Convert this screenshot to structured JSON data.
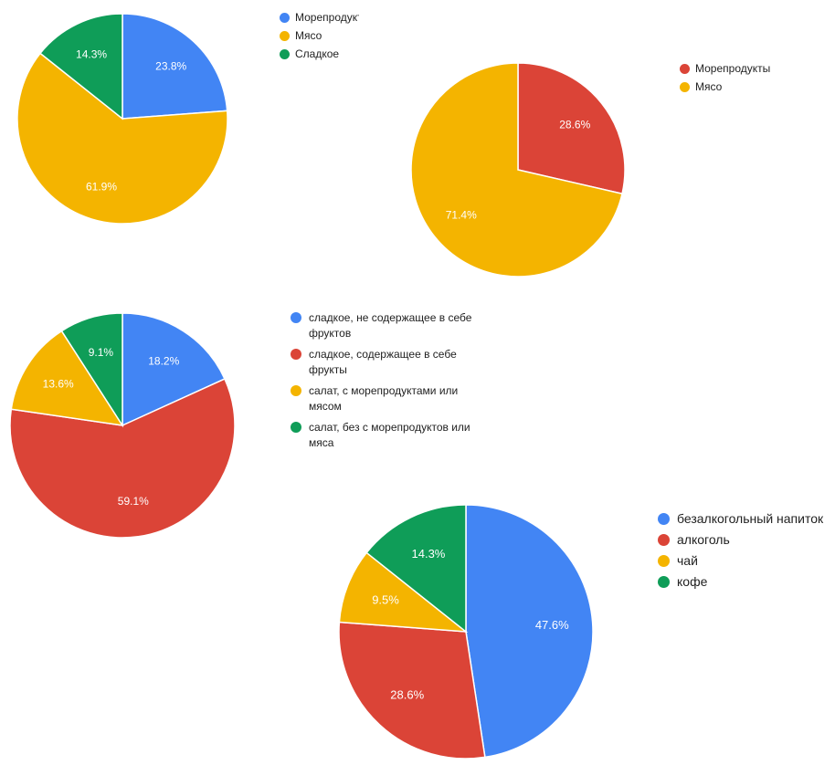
{
  "chart_data": [
    {
      "type": "pie",
      "categories": [
        "Морепродукты",
        "Мясо",
        "Сладкое"
      ],
      "values": [
        23.8,
        61.9,
        14.3
      ],
      "labels": [
        "23.8%",
        "61.9%",
        "14.3%"
      ],
      "colors": [
        "#4285F4",
        "#F4B400",
        "#0F9D58"
      ],
      "legend": [
        "Морепродукты",
        "Мясо",
        "Сладкое"
      ],
      "legend_position": "right"
    },
    {
      "type": "pie",
      "categories": [
        "Морепродукты",
        "Мясо"
      ],
      "values": [
        28.6,
        71.4
      ],
      "labels": [
        "28.6%",
        "71.4%"
      ],
      "colors": [
        "#DB4437",
        "#F4B400"
      ],
      "legend": [
        "Морепродукты",
        "Мясо"
      ],
      "legend_position": "right"
    },
    {
      "type": "pie",
      "categories": [
        "сладкое, не содержащее в себе фруктов",
        "сладкое, содержащее в себе фрукты",
        "салат, с морепродуктами или мясом",
        "салат, без с морепродуктов или мяса"
      ],
      "values": [
        18.2,
        59.1,
        13.6,
        9.1
      ],
      "labels": [
        "18.2%",
        "59.1%",
        "13.6%",
        "9.1%"
      ],
      "colors": [
        "#4285F4",
        "#DB4437",
        "#F4B400",
        "#0F9D58"
      ],
      "legend": [
        "сладкое, не содержащее в себе фруктов",
        "сладкое, содержащее в себе фрукты",
        "салат, с морепродуктами или мясом",
        "салат, без с морепродуктов или мяса"
      ],
      "legend_position": "right"
    },
    {
      "type": "pie",
      "categories": [
        "безалкогольный напиток",
        "алкоголь",
        "чай",
        "кофе"
      ],
      "values": [
        47.6,
        28.6,
        9.5,
        14.3
      ],
      "labels": [
        "47.6%",
        "28.6%",
        "9.5%",
        "14.3%"
      ],
      "colors": [
        "#4285F4",
        "#DB4437",
        "#F4B400",
        "#0F9D58"
      ],
      "legend": [
        "безалкогольный напиток",
        "алкоголь",
        "чай",
        "кофе"
      ],
      "legend_position": "right"
    }
  ]
}
